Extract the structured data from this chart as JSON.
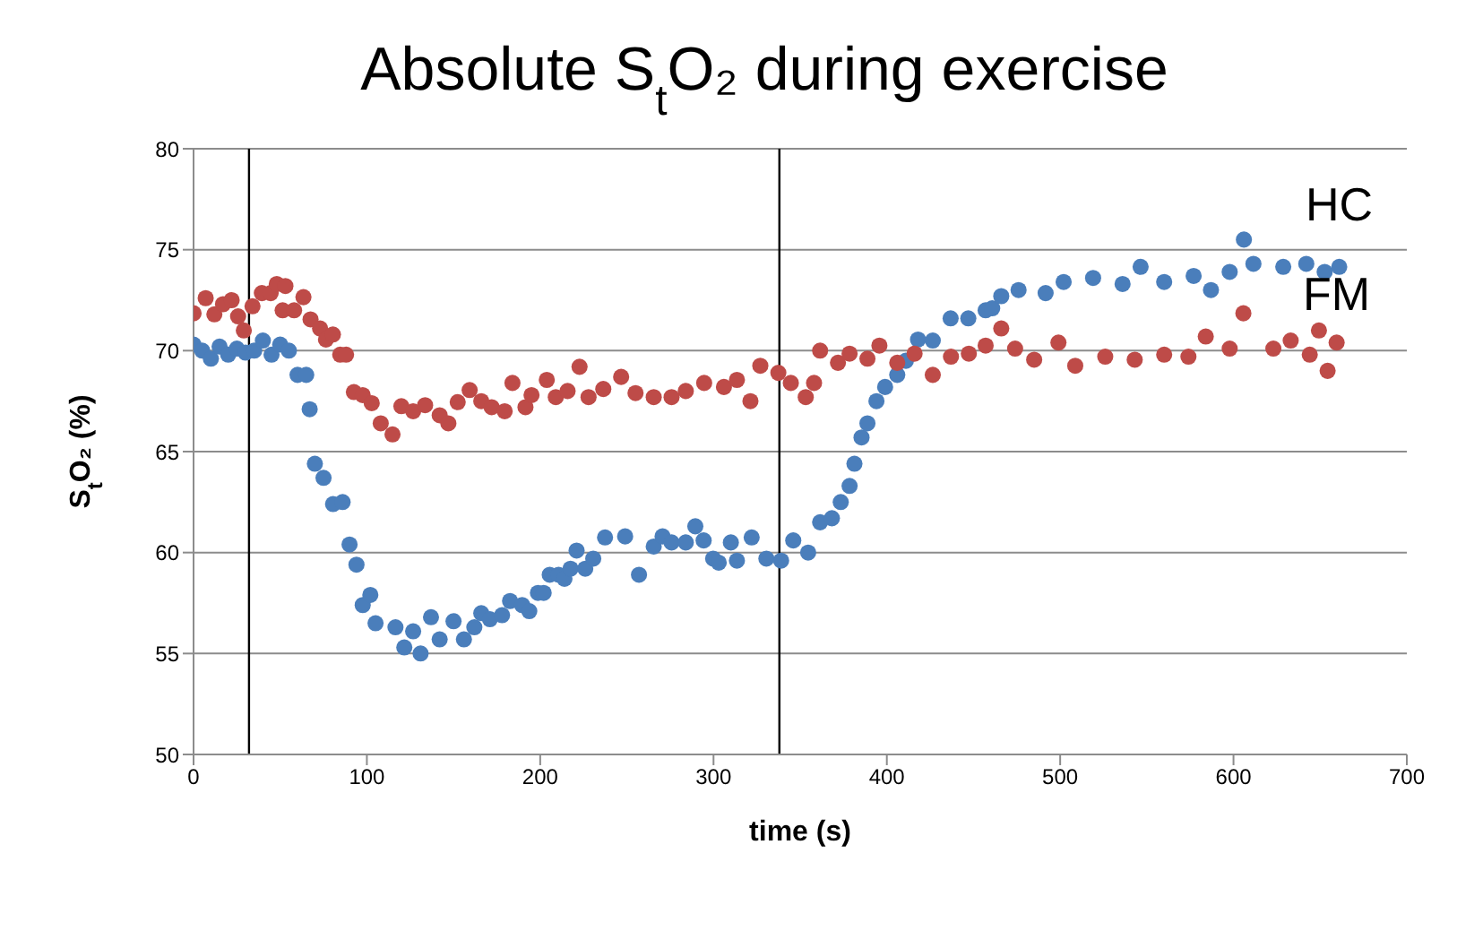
{
  "chart_data": {
    "type": "scatter",
    "title": "Absolute S$_{t}$O₂ during exercise",
    "xlabel": "time (s)",
    "ylabel": "S$_{t}$O₂ (%)",
    "xlim": [
      0,
      700
    ],
    "xticks": [
      0,
      100,
      200,
      300,
      400,
      500,
      600,
      700
    ],
    "ylim": [
      50,
      80
    ],
    "yticks": [
      50,
      55,
      60,
      65,
      70,
      75,
      80
    ],
    "grid": "y",
    "legend": false,
    "marker": "circle",
    "ref_lines": [
      {
        "axis": "x",
        "value": 32,
        "color": "#000000"
      },
      {
        "axis": "x",
        "value": 338,
        "color": "#000000"
      }
    ],
    "series": [
      {
        "name": "HC",
        "color": "#4a7ebb",
        "x": [
          0,
          5,
          10,
          15,
          20,
          25,
          30,
          35,
          40,
          45,
          50,
          55,
          60,
          65,
          67,
          70,
          75,
          80.5,
          86,
          90,
          94,
          97.6,
          102,
          105,
          116.5,
          121.6,
          126.7,
          131,
          137,
          142,
          150,
          156,
          162,
          166,
          171,
          178,
          182.6,
          189.6,
          193.7,
          198.7,
          202,
          205.5,
          210.6,
          214,
          217.5,
          221,
          226,
          230.6,
          237.4,
          249,
          257,
          265.5,
          270.6,
          275.8,
          284,
          289.5,
          294.3,
          299.8,
          303,
          310,
          313.5,
          322,
          330.5,
          339,
          346,
          354.6,
          361.5,
          368.3,
          373.4,
          378.5,
          381.3,
          385.4,
          388.8,
          394,
          399,
          406,
          411,
          418,
          426.5,
          436.8,
          447,
          457,
          460.8,
          466,
          476,
          491.6,
          502,
          519,
          536,
          546.4,
          560,
          577,
          587,
          597.8,
          606,
          611.5,
          628.7,
          642,
          652.6,
          661
        ],
        "values": [
          70.3,
          70.0,
          69.6,
          70.2,
          69.8,
          70.1,
          69.9,
          70.0,
          70.5,
          69.8,
          70.3,
          70.0,
          68.8,
          68.8,
          67.1,
          64.4,
          63.7,
          62.4,
          62.5,
          60.4,
          59.4,
          57.4,
          57.9,
          56.5,
          56.3,
          55.3,
          56.1,
          55.0,
          56.8,
          55.7,
          56.6,
          55.7,
          56.3,
          57.0,
          56.7,
          56.9,
          57.6,
          57.4,
          57.1,
          58.0,
          58.0,
          58.9,
          58.9,
          58.7,
          59.2,
          60.1,
          59.2,
          59.7,
          60.75,
          60.8,
          58.9,
          60.3,
          60.8,
          60.5,
          60.5,
          61.3,
          60.6,
          59.7,
          59.5,
          60.5,
          59.6,
          60.75,
          59.7,
          59.6,
          60.6,
          60.0,
          61.5,
          61.7,
          62.5,
          63.3,
          64.4,
          65.7,
          66.4,
          67.5,
          68.2,
          68.8,
          69.5,
          70.55,
          70.5,
          71.6,
          71.6,
          72.0,
          72.1,
          72.7,
          73.0,
          72.85,
          73.4,
          73.6,
          73.3,
          74.15,
          73.4,
          73.7,
          73.0,
          73.9,
          75.5,
          74.3,
          74.15,
          74.3,
          73.9,
          74.15
        ]
      },
      {
        "name": "FM",
        "color": "#be4b48",
        "x": [
          0,
          7,
          12,
          17,
          22,
          25.7,
          29,
          34,
          39.4,
          44.5,
          48,
          51.4,
          53,
          58,
          63.4,
          67.5,
          73,
          76.4,
          80.4,
          84.6,
          88,
          92.5,
          97.6,
          102.8,
          108,
          114.8,
          119.9,
          126.7,
          133.6,
          142,
          147,
          152.4,
          159.3,
          166,
          172,
          179.5,
          184,
          191.5,
          195,
          203.8,
          209,
          215.8,
          222.7,
          227.9,
          236.4,
          246.7,
          255,
          265.5,
          275.8,
          284,
          294.6,
          306,
          313.5,
          321.3,
          327,
          337.4,
          344.6,
          353.2,
          358,
          361.5,
          371.8,
          378.5,
          388.8,
          395.7,
          406,
          416,
          426.5,
          437,
          447.3,
          457,
          466,
          474,
          485,
          499,
          508.7,
          526,
          543,
          560,
          574,
          584,
          597.8,
          605.7,
          623,
          633,
          644,
          649.3,
          654.3,
          659.5
        ],
        "values": [
          71.85,
          72.6,
          71.8,
          72.3,
          72.5,
          71.7,
          71.0,
          72.2,
          72.85,
          72.85,
          73.3,
          72.0,
          73.2,
          72.0,
          72.65,
          71.55,
          71.1,
          70.55,
          70.8,
          69.8,
          69.8,
          67.95,
          67.8,
          67.4,
          66.4,
          65.85,
          67.25,
          67.0,
          67.3,
          66.8,
          66.4,
          67.45,
          68.05,
          67.5,
          67.2,
          67.0,
          68.4,
          67.2,
          67.8,
          68.55,
          67.7,
          68.0,
          69.2,
          67.7,
          68.1,
          68.7,
          67.9,
          67.7,
          67.7,
          68.0,
          68.4,
          68.2,
          68.55,
          67.5,
          69.25,
          68.9,
          68.4,
          67.7,
          68.4,
          70.0,
          69.4,
          69.85,
          69.6,
          70.25,
          69.4,
          69.85,
          68.8,
          69.7,
          69.85,
          70.25,
          71.1,
          70.1,
          69.55,
          70.4,
          69.25,
          69.7,
          69.55,
          69.8,
          69.7,
          70.7,
          70.1,
          71.85,
          70.1,
          70.5,
          69.8,
          71.0,
          69.0,
          70.4
        ]
      }
    ]
  }
}
